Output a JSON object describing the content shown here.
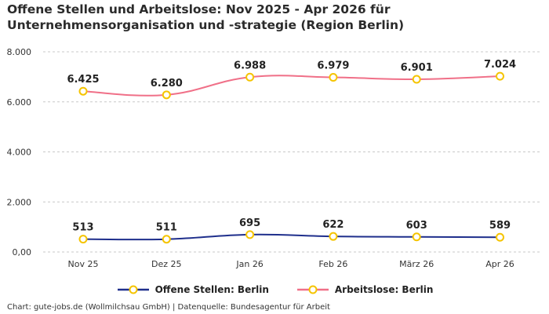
{
  "title": "Offene Stellen und Arbeitslose: Nov 2025 - Apr 2026 für Unternehmensorganisation und -strategie (Region Berlin)",
  "footer": "Chart: gute-jobs.de (Wollmilchsau GmbH) | Datenquelle: Bundesagentur für Arbeit",
  "chart_data": {
    "type": "line",
    "categories": [
      "Nov 25",
      "Dez 25",
      "Jan 26",
      "Feb 26",
      "März 26",
      "Apr 26"
    ],
    "ylim": [
      0,
      8000
    ],
    "yticks": [
      0,
      2000,
      4000,
      6000,
      8000
    ],
    "ytick_labels": [
      "0,00",
      "2.000",
      "4.000",
      "6.000",
      "8.000"
    ],
    "grid": true,
    "legend_position": "bottom",
    "series": [
      {
        "name": "Offene Stellen: Berlin",
        "color": "#1f2f8c",
        "values": [
          513,
          511,
          695,
          622,
          603,
          589
        ],
        "labels": [
          "513",
          "511",
          "695",
          "622",
          "603",
          "589"
        ]
      },
      {
        "name": "Arbeitslose: Berlin",
        "color": "#f07088",
        "values": [
          6425,
          6280,
          6988,
          6979,
          6901,
          7024
        ],
        "labels": [
          "6.425",
          "6.280",
          "6.988",
          "6.979",
          "6.901",
          "7.024"
        ]
      }
    ],
    "marker_color": "#f5c400"
  }
}
